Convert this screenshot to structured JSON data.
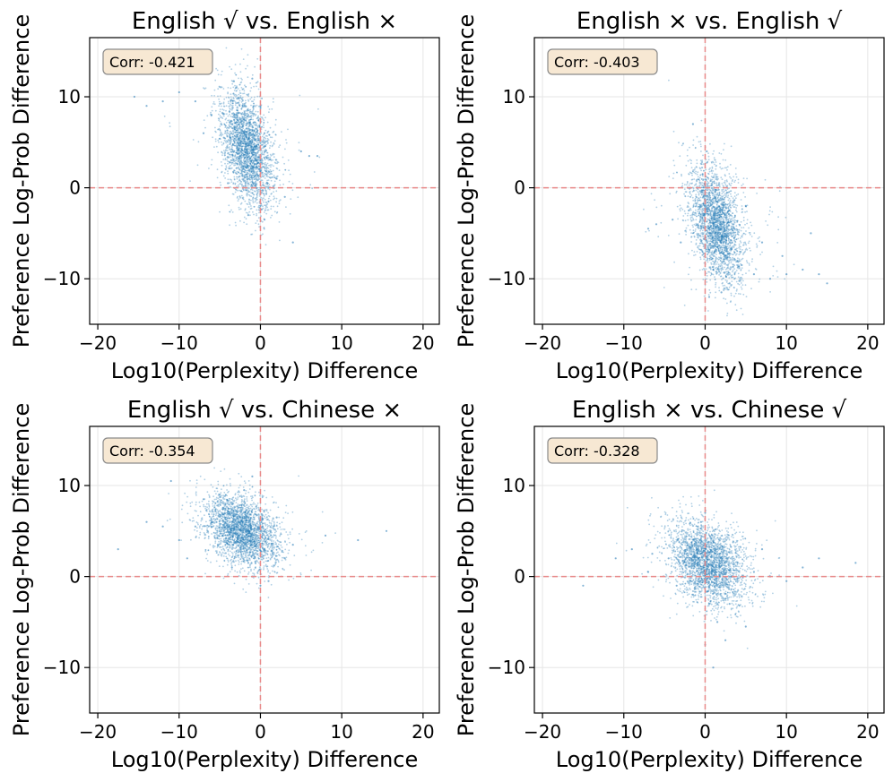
{
  "chart_data": [
    {
      "type": "scatter",
      "title": "English √ vs. English ×",
      "xlabel": "Log10(Perplexity) Difference",
      "ylabel": "Preference Log-Prob Difference",
      "xlim": [
        -21,
        22
      ],
      "ylim": [
        -15,
        16.5
      ],
      "xticks": [
        -20,
        -10,
        0,
        10,
        20
      ],
      "yticks": [
        -10,
        0,
        10
      ],
      "xtick_labels": [
        "−20",
        "−10",
        "0",
        "10",
        "20"
      ],
      "ytick_labels": [
        "−10",
        "0",
        "10"
      ],
      "annotation": "Corr: -0.421",
      "grid": true,
      "reference_lines": {
        "x": 0,
        "y": 0,
        "color": "#e88a8a",
        "style": "dashed"
      },
      "series": [
        {
          "color": "#1f77b4",
          "points": [
            [
              -3.5,
              7.0
            ],
            [
              -2.0,
              6.0
            ],
            [
              -1.5,
              8.0
            ],
            [
              -1.0,
              5.0
            ],
            [
              -0.5,
              3.0
            ],
            [
              -2.5,
              3.5
            ],
            [
              -4.5,
              5.5
            ],
            [
              -6.0,
              8.0
            ],
            [
              -8.0,
              9.5
            ],
            [
              -10.0,
              10.5
            ],
            [
              -12.0,
              9.5
            ],
            [
              -14.0,
              9.0
            ],
            [
              -15.5,
              10.0
            ],
            [
              -3.0,
              11.0
            ],
            [
              -1.0,
              12.0
            ],
            [
              -0.5,
              0.0
            ],
            [
              0.0,
              -2.0
            ],
            [
              0.5,
              -3.5
            ],
            [
              1.0,
              -1.5
            ],
            [
              2.0,
              1.0
            ],
            [
              3.0,
              -1.0
            ],
            [
              4.0,
              -6.0
            ],
            [
              5.0,
              4.0
            ],
            [
              6.0,
              3.5
            ],
            [
              7.0,
              3.5
            ],
            [
              -1.5,
              -3.0
            ],
            [
              -4.0,
              0.5
            ],
            [
              -7.0,
              6.0
            ],
            [
              0.0,
              9.0
            ],
            [
              0.5,
              6.0
            ]
          ]
        }
      ]
    },
    {
      "type": "scatter",
      "title": "English × vs. English √",
      "xlabel": "Log10(Perplexity) Difference",
      "ylabel": "Preference Log-Prob Difference",
      "xlim": [
        -21,
        22
      ],
      "ylim": [
        -15,
        16.5
      ],
      "xticks": [
        -20,
        -10,
        0,
        10,
        20
      ],
      "yticks": [
        -10,
        0,
        10
      ],
      "xtick_labels": [
        "−20",
        "−10",
        "0",
        "10",
        "20"
      ],
      "ytick_labels": [
        "−10",
        "0",
        "10"
      ],
      "annotation": "Corr: -0.403",
      "grid": true,
      "reference_lines": {
        "x": 0,
        "y": 0,
        "color": "#e88a8a",
        "style": "dashed"
      },
      "series": [
        {
          "color": "#1f77b4",
          "points": [
            [
              0.5,
              -5.0
            ],
            [
              1.5,
              -6.5
            ],
            [
              2.5,
              -7.5
            ],
            [
              0.0,
              -2.0
            ],
            [
              -0.3,
              1.5
            ],
            [
              0.2,
              4.0
            ],
            [
              1.0,
              -9.0
            ],
            [
              3.5,
              -4.0
            ],
            [
              4.5,
              -8.5
            ],
            [
              6.0,
              -9.5
            ],
            [
              8.0,
              -10.0
            ],
            [
              10.0,
              -9.5
            ],
            [
              12.0,
              -9.0
            ],
            [
              14.0,
              -9.5
            ],
            [
              15.0,
              -10.5
            ],
            [
              -2.0,
              -2.5
            ],
            [
              -4.0,
              -3.5
            ],
            [
              -6.0,
              -4.0
            ],
            [
              -7.0,
              -4.5
            ],
            [
              -1.5,
              7.0
            ],
            [
              2.0,
              -11.5
            ],
            [
              5.0,
              -2.0
            ],
            [
              7.0,
              -6.0
            ],
            [
              0.5,
              -12.0
            ],
            [
              3.0,
              -10.5
            ],
            [
              -1.0,
              0.0
            ],
            [
              1.0,
              -3.0
            ],
            [
              9.5,
              -7.5
            ],
            [
              13.0,
              -5.0
            ],
            [
              -3.0,
              -6.0
            ]
          ]
        }
      ]
    },
    {
      "type": "scatter",
      "title": "English √ vs. Chinese ×",
      "xlabel": "Log10(Perplexity) Difference",
      "ylabel": "Preference Log-Prob Difference",
      "xlim": [
        -21,
        22
      ],
      "ylim": [
        -15,
        16.5
      ],
      "xticks": [
        -20,
        -10,
        0,
        10,
        20
      ],
      "yticks": [
        -10,
        0,
        10
      ],
      "xtick_labels": [
        "−20",
        "−10",
        "0",
        "10",
        "20"
      ],
      "ytick_labels": [
        "−10",
        "0",
        "10"
      ],
      "annotation": "Corr: -0.354",
      "grid": true,
      "reference_lines": {
        "x": 0,
        "y": 0,
        "color": "#e88a8a",
        "style": "dashed"
      },
      "series": [
        {
          "color": "#1f77b4",
          "points": [
            [
              -3.0,
              5.5
            ],
            [
              -1.5,
              5.0
            ],
            [
              -0.5,
              3.5
            ],
            [
              -2.5,
              6.5
            ],
            [
              -4.5,
              5.0
            ],
            [
              -6.0,
              6.0
            ],
            [
              -8.0,
              5.5
            ],
            [
              -10.0,
              4.0
            ],
            [
              -12.0,
              5.5
            ],
            [
              -14.0,
              6.0
            ],
            [
              -17.5,
              3.0
            ],
            [
              -2.0,
              9.5
            ],
            [
              -1.0,
              11.0
            ],
            [
              0.5,
              3.0
            ],
            [
              1.5,
              2.5
            ],
            [
              3.0,
              2.0
            ],
            [
              4.0,
              3.5
            ],
            [
              8.0,
              4.5
            ],
            [
              12.0,
              4.0
            ],
            [
              15.5,
              5.0
            ],
            [
              -1.0,
              0.0
            ],
            [
              0.0,
              -1.0
            ],
            [
              -3.5,
              1.0
            ],
            [
              -5.0,
              9.0
            ],
            [
              -7.0,
              8.5
            ],
            [
              -11.0,
              10.5
            ],
            [
              2.0,
              6.5
            ],
            [
              -1.5,
              1.5
            ],
            [
              1.0,
              -0.5
            ],
            [
              -9.0,
              2.0
            ]
          ]
        }
      ]
    },
    {
      "type": "scatter",
      "title": "English × vs. Chinese √",
      "xlabel": "Log10(Perplexity) Difference",
      "ylabel": "Preference Log-Prob Difference",
      "xlim": [
        -21,
        22
      ],
      "ylim": [
        -15,
        16.5
      ],
      "xticks": [
        -20,
        -10,
        0,
        10,
        20
      ],
      "yticks": [
        -10,
        0,
        10
      ],
      "xtick_labels": [
        "−20",
        "−10",
        "0",
        "10",
        "20"
      ],
      "ytick_labels": [
        "−10",
        "0",
        "10"
      ],
      "annotation": "Corr: -0.328",
      "grid": true,
      "reference_lines": {
        "x": 0,
        "y": 0,
        "color": "#e88a8a",
        "style": "dashed"
      },
      "series": [
        {
          "color": "#1f77b4",
          "points": [
            [
              0.0,
              2.5
            ],
            [
              -1.0,
              3.0
            ],
            [
              1.0,
              1.5
            ],
            [
              2.0,
              2.0
            ],
            [
              -2.5,
              2.5
            ],
            [
              -4.5,
              2.0
            ],
            [
              -6.5,
              2.5
            ],
            [
              -9.0,
              3.0
            ],
            [
              -11.0,
              2.0
            ],
            [
              -15.0,
              -1.0
            ],
            [
              4.0,
              1.5
            ],
            [
              6.0,
              0.5
            ],
            [
              8.0,
              0.0
            ],
            [
              10.0,
              -0.5
            ],
            [
              12.0,
              1.0
            ],
            [
              14.0,
              2.0
            ],
            [
              18.5,
              1.5
            ],
            [
              0.5,
              -3.0
            ],
            [
              1.5,
              -5.0
            ],
            [
              2.5,
              -7.0
            ],
            [
              0.0,
              -7.5
            ],
            [
              -0.5,
              6.0
            ],
            [
              0.0,
              7.0
            ],
            [
              -1.5,
              -2.0
            ],
            [
              3.0,
              -3.0
            ],
            [
              5.0,
              -5.5
            ],
            [
              -3.5,
              -1.0
            ],
            [
              1.0,
              -10.0
            ],
            [
              -7.0,
              0.5
            ],
            [
              7.0,
              3.0
            ]
          ]
        }
      ]
    }
  ]
}
